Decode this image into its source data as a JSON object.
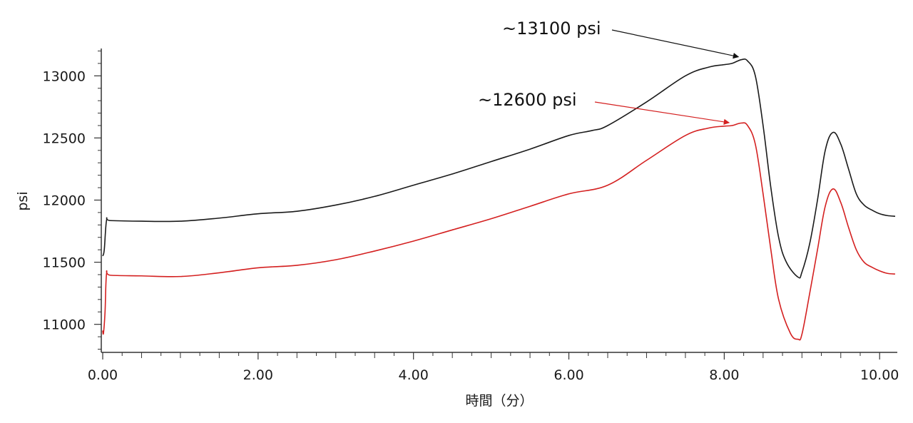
{
  "chart_data": {
    "type": "line",
    "xlabel": "時間（分）",
    "ylabel": "psi",
    "xlim": [
      0,
      10.2
    ],
    "ylim": [
      10780,
      13220
    ],
    "x_ticks": [
      {
        "value": 0,
        "label": "0.00"
      },
      {
        "value": 2,
        "label": "2.00"
      },
      {
        "value": 4,
        "label": "4.00"
      },
      {
        "value": 6,
        "label": "6.00"
      },
      {
        "value": 8,
        "label": "8.00"
      },
      {
        "value": 10,
        "label": "10.00"
      }
    ],
    "y_ticks": [
      {
        "value": 11000,
        "label": "11000"
      },
      {
        "value": 11500,
        "label": "11500"
      },
      {
        "value": 12000,
        "label": "12000"
      },
      {
        "value": 12500,
        "label": "12500"
      },
      {
        "value": 13000,
        "label": "13000"
      }
    ],
    "grid": false,
    "series": [
      {
        "color": "#1a1a1a",
        "points": [
          [
            0.0,
            11550
          ],
          [
            0.02,
            11600
          ],
          [
            0.05,
            11840
          ],
          [
            0.1,
            11835
          ],
          [
            0.5,
            11830
          ],
          [
            1.0,
            11830
          ],
          [
            1.5,
            11855
          ],
          [
            2.0,
            11890
          ],
          [
            2.5,
            11910
          ],
          [
            3.0,
            11960
          ],
          [
            3.5,
            12030
          ],
          [
            4.0,
            12120
          ],
          [
            4.5,
            12210
          ],
          [
            5.0,
            12310
          ],
          [
            5.5,
            12410
          ],
          [
            6.0,
            12520
          ],
          [
            6.3,
            12560
          ],
          [
            6.5,
            12600
          ],
          [
            7.0,
            12790
          ],
          [
            7.5,
            13000
          ],
          [
            7.8,
            13070
          ],
          [
            8.0,
            13090
          ],
          [
            8.1,
            13100
          ],
          [
            8.22,
            13130
          ],
          [
            8.3,
            13120
          ],
          [
            8.4,
            13000
          ],
          [
            8.5,
            12600
          ],
          [
            8.6,
            12100
          ],
          [
            8.7,
            11700
          ],
          [
            8.8,
            11500
          ],
          [
            8.95,
            11380
          ],
          [
            9.0,
            11420
          ],
          [
            9.1,
            11650
          ],
          [
            9.2,
            12000
          ],
          [
            9.3,
            12400
          ],
          [
            9.4,
            12545
          ],
          [
            9.5,
            12450
          ],
          [
            9.6,
            12250
          ],
          [
            9.7,
            12050
          ],
          [
            9.8,
            11960
          ],
          [
            9.9,
            11920
          ],
          [
            10.0,
            11890
          ],
          [
            10.1,
            11875
          ],
          [
            10.2,
            11870
          ]
        ]
      },
      {
        "color": "#d42020",
        "points": [
          [
            0.0,
            10950
          ],
          [
            0.01,
            10930
          ],
          [
            0.03,
            11100
          ],
          [
            0.05,
            11410
          ],
          [
            0.1,
            11395
          ],
          [
            0.5,
            11390
          ],
          [
            1.0,
            11385
          ],
          [
            1.5,
            11415
          ],
          [
            2.0,
            11455
          ],
          [
            2.5,
            11475
          ],
          [
            3.0,
            11520
          ],
          [
            3.5,
            11590
          ],
          [
            4.0,
            11670
          ],
          [
            4.5,
            11760
          ],
          [
            5.0,
            11850
          ],
          [
            5.5,
            11950
          ],
          [
            6.0,
            12050
          ],
          [
            6.5,
            12120
          ],
          [
            7.0,
            12320
          ],
          [
            7.5,
            12520
          ],
          [
            7.8,
            12580
          ],
          [
            8.0,
            12595
          ],
          [
            8.1,
            12600
          ],
          [
            8.22,
            12620
          ],
          [
            8.3,
            12600
          ],
          [
            8.4,
            12450
          ],
          [
            8.5,
            12050
          ],
          [
            8.6,
            11600
          ],
          [
            8.7,
            11200
          ],
          [
            8.85,
            10930
          ],
          [
            8.95,
            10880
          ],
          [
            9.0,
            10920
          ],
          [
            9.1,
            11250
          ],
          [
            9.2,
            11600
          ],
          [
            9.3,
            11950
          ],
          [
            9.4,
            12090
          ],
          [
            9.5,
            11980
          ],
          [
            9.6,
            11780
          ],
          [
            9.7,
            11600
          ],
          [
            9.8,
            11500
          ],
          [
            9.9,
            11460
          ],
          [
            10.0,
            11430
          ],
          [
            10.1,
            11410
          ],
          [
            10.2,
            11405
          ]
        ]
      }
    ],
    "annotations": [
      {
        "text": "~13100 psi",
        "color": "#111111",
        "x": 8.22,
        "y": 13130
      },
      {
        "text": "~12600 psi",
        "color": "#d42020",
        "x": 8.1,
        "y": 12600
      }
    ]
  }
}
